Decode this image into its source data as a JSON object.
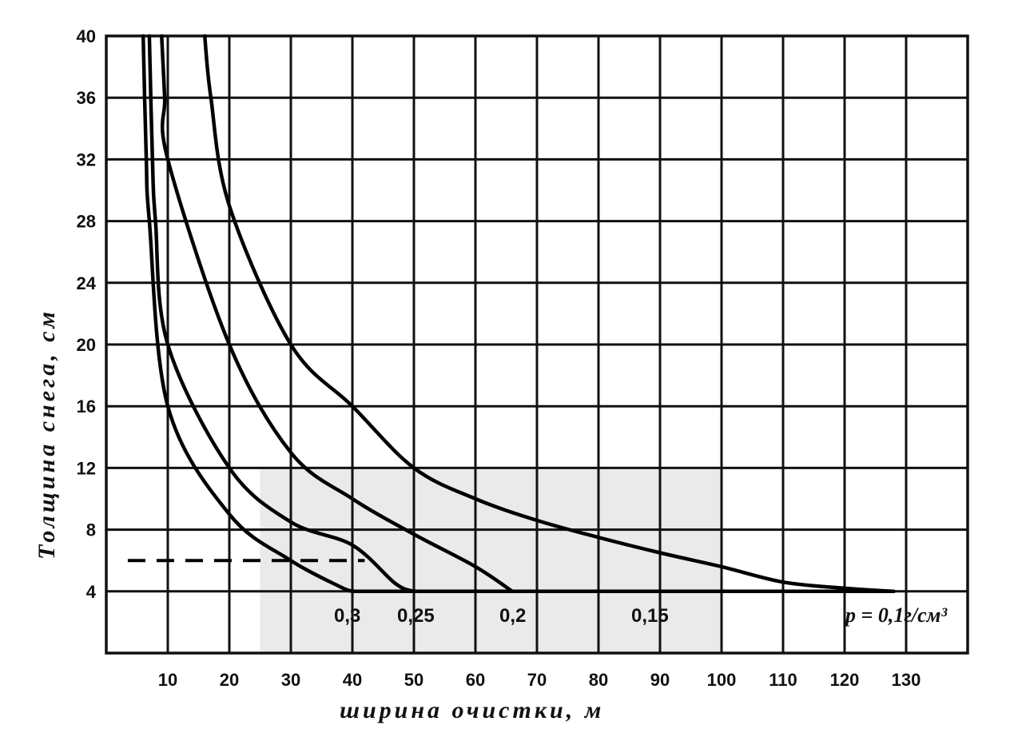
{
  "chart_data": {
    "type": "line",
    "xlabel": "ширина очистки, м",
    "ylabel": "Толщина снега, см",
    "xlim": [
      0,
      140
    ],
    "ylim": [
      0,
      40
    ],
    "x_ticks": [
      10,
      20,
      30,
      40,
      50,
      60,
      70,
      80,
      90,
      100,
      110,
      120,
      130
    ],
    "x_tick_labels": [
      "10",
      "20",
      "30",
      "40",
      "50",
      "60",
      "70",
      "80",
      "90",
      "100",
      "110",
      "120",
      "130"
    ],
    "y_ticks": [
      4,
      8,
      12,
      16,
      20,
      24,
      28,
      32,
      36,
      40
    ],
    "y_tick_labels": [
      "4",
      "8",
      "12",
      "16",
      "20",
      "24",
      "28",
      "32",
      "36",
      "40"
    ],
    "grid": true,
    "reference_line_y": 6,
    "density_label": "p = 0,1г/см³",
    "series": [
      {
        "name": "0,3",
        "label": "0,3",
        "points": [
          [
            6,
            40
          ],
          [
            6.5,
            32
          ],
          [
            7,
            28
          ],
          [
            10,
            16
          ],
          [
            20,
            9
          ],
          [
            30,
            6
          ],
          [
            38,
            4.3
          ],
          [
            40,
            4
          ]
        ]
      },
      {
        "name": "0,25",
        "label": "0,25",
        "points": [
          [
            7,
            40
          ],
          [
            7.5,
            32
          ],
          [
            8,
            28
          ],
          [
            10,
            20
          ],
          [
            20,
            12
          ],
          [
            30,
            8.5
          ],
          [
            40,
            7
          ],
          [
            47,
            4.5
          ],
          [
            50,
            4
          ]
        ]
      },
      {
        "name": "0,2",
        "label": "0,2",
        "points": [
          [
            9,
            40
          ],
          [
            9.5,
            36
          ],
          [
            10,
            32
          ],
          [
            20,
            20
          ],
          [
            30,
            13
          ],
          [
            40,
            10
          ],
          [
            50,
            7.7
          ],
          [
            60,
            5.6
          ],
          [
            66,
            4
          ]
        ]
      },
      {
        "name": "0,15",
        "label": "0,15",
        "points": [
          [
            16,
            40
          ],
          [
            17,
            36
          ],
          [
            20,
            29
          ],
          [
            30,
            20
          ],
          [
            40,
            16
          ],
          [
            50,
            12
          ],
          [
            60,
            10
          ],
          [
            70,
            8.6
          ],
          [
            80,
            7.5
          ],
          [
            90,
            6.5
          ],
          [
            100,
            5.6
          ],
          [
            110,
            4.6
          ],
          [
            120,
            4.2
          ],
          [
            128,
            4
          ]
        ]
      },
      {
        "name": "0,1",
        "label": "",
        "points": [
          [
            40,
            4
          ],
          [
            50,
            4
          ],
          [
            60,
            4
          ],
          [
            70,
            4
          ],
          [
            80,
            4
          ],
          [
            90,
            4
          ],
          [
            100,
            4
          ],
          [
            110,
            4
          ],
          [
            120,
            4
          ],
          [
            128,
            4
          ]
        ]
      }
    ]
  }
}
